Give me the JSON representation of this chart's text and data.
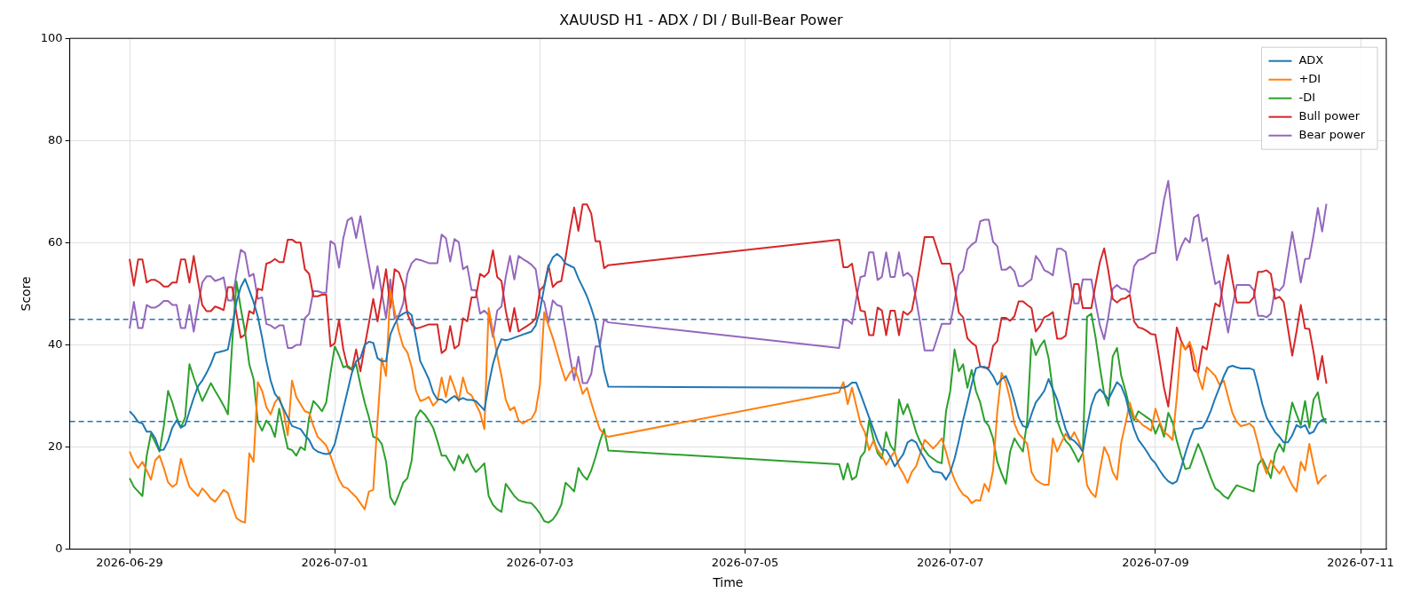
{
  "chart_data": {
    "type": "line",
    "title": "XAUUSD H1 - ADX / DI / Bull-Bear Power",
    "xlabel": "Time",
    "ylabel": "Score",
    "x": [
      "2026-06-29T00:00",
      "2026-06-29T01:00",
      "2026-06-29T02:00",
      "2026-06-29T03:00",
      "2026-06-29T04:00",
      "2026-06-29T05:00",
      "2026-06-29T06:00",
      "2026-06-29T07:00",
      "2026-06-29T08:00",
      "2026-06-29T09:00",
      "2026-06-29T10:00",
      "2026-06-29T11:00",
      "2026-06-29T12:00",
      "2026-06-29T13:00",
      "2026-06-29T14:00",
      "2026-06-29T15:00",
      "2026-06-29T16:00",
      "2026-06-29T17:00",
      "2026-06-29T18:00",
      "2026-06-29T19:00",
      "2026-06-29T20:00",
      "2026-06-29T21:00",
      "2026-06-29T22:00",
      "2026-06-29T23:00",
      "2026-06-30T00:00",
      "2026-06-30T01:00",
      "2026-06-30T02:00",
      "2026-06-30T03:00",
      "2026-06-30T04:00",
      "2026-06-30T05:00",
      "2026-06-30T06:00",
      "2026-06-30T07:00",
      "2026-06-30T08:00",
      "2026-06-30T09:00",
      "2026-06-30T10:00",
      "2026-06-30T11:00",
      "2026-06-30T12:00",
      "2026-06-30T13:00",
      "2026-06-30T14:00",
      "2026-06-30T15:00",
      "2026-06-30T16:00",
      "2026-06-30T17:00",
      "2026-06-30T18:00",
      "2026-06-30T19:00",
      "2026-06-30T20:00",
      "2026-06-30T21:00",
      "2026-06-30T22:00",
      "2026-06-30T23:00",
      "2026-07-01T00:00",
      "2026-07-01T01:00",
      "2026-07-01T02:00",
      "2026-07-01T03:00",
      "2026-07-01T04:00",
      "2026-07-01T05:00",
      "2026-07-01T06:00",
      "2026-07-01T07:00",
      "2026-07-01T08:00",
      "2026-07-01T09:00",
      "2026-07-01T10:00",
      "2026-07-01T11:00",
      "2026-07-01T12:00",
      "2026-07-01T13:00",
      "2026-07-01T14:00",
      "2026-07-01T15:00",
      "2026-07-01T16:00",
      "2026-07-01T17:00",
      "2026-07-01T18:00",
      "2026-07-01T19:00",
      "2026-07-01T20:00",
      "2026-07-01T21:00",
      "2026-07-01T22:00",
      "2026-07-01T23:00",
      "2026-07-02T00:00",
      "2026-07-02T01:00",
      "2026-07-02T02:00",
      "2026-07-02T03:00",
      "2026-07-02T04:00",
      "2026-07-02T05:00",
      "2026-07-02T06:00",
      "2026-07-02T07:00",
      "2026-07-02T08:00",
      "2026-07-02T09:00",
      "2026-07-02T10:00",
      "2026-07-02T11:00",
      "2026-07-02T12:00",
      "2026-07-02T13:00",
      "2026-07-02T14:00",
      "2026-07-02T15:00",
      "2026-07-02T16:00",
      "2026-07-02T17:00",
      "2026-07-02T18:00",
      "2026-07-02T19:00",
      "2026-07-02T20:00",
      "2026-07-02T21:00",
      "2026-07-02T22:00",
      "2026-07-02T23:00",
      "2026-07-03T00:00",
      "2026-07-03T01:00",
      "2026-07-03T02:00",
      "2026-07-03T03:00",
      "2026-07-03T04:00",
      "2026-07-03T05:00",
      "2026-07-03T06:00",
      "2026-07-03T07:00",
      "2026-07-03T08:00",
      "2026-07-03T09:00",
      "2026-07-03T10:00",
      "2026-07-03T11:00",
      "2026-07-03T12:00",
      "2026-07-03T13:00",
      "2026-07-03T14:00",
      "2026-07-03T15:00",
      "2026-07-03T16:00",
      "2026-07-05T22:00",
      "2026-07-05T23:00",
      "2026-07-06T00:00",
      "2026-07-06T01:00",
      "2026-07-06T02:00",
      "2026-07-06T03:00",
      "2026-07-06T04:00",
      "2026-07-06T05:00",
      "2026-07-06T06:00",
      "2026-07-06T07:00",
      "2026-07-06T08:00",
      "2026-07-06T09:00",
      "2026-07-06T10:00",
      "2026-07-06T11:00",
      "2026-07-06T12:00",
      "2026-07-06T13:00",
      "2026-07-06T14:00",
      "2026-07-06T15:00",
      "2026-07-06T16:00",
      "2026-07-06T17:00",
      "2026-07-06T18:00",
      "2026-07-06T19:00",
      "2026-07-06T20:00",
      "2026-07-06T21:00",
      "2026-07-06T22:00",
      "2026-07-06T23:00",
      "2026-07-07T00:00",
      "2026-07-07T01:00",
      "2026-07-07T02:00",
      "2026-07-07T03:00",
      "2026-07-07T04:00",
      "2026-07-07T05:00",
      "2026-07-07T06:00",
      "2026-07-07T07:00",
      "2026-07-07T08:00",
      "2026-07-07T09:00",
      "2026-07-07T10:00",
      "2026-07-07T11:00",
      "2026-07-07T12:00",
      "2026-07-07T13:00",
      "2026-07-07T14:00",
      "2026-07-07T15:00",
      "2026-07-07T16:00",
      "2026-07-07T17:00",
      "2026-07-07T18:00",
      "2026-07-07T19:00",
      "2026-07-07T20:00",
      "2026-07-07T21:00",
      "2026-07-07T22:00",
      "2026-07-07T23:00",
      "2026-07-08T00:00",
      "2026-07-08T01:00",
      "2026-07-08T02:00",
      "2026-07-08T03:00",
      "2026-07-08T04:00",
      "2026-07-08T05:00",
      "2026-07-08T06:00",
      "2026-07-08T07:00",
      "2026-07-08T08:00",
      "2026-07-08T09:00",
      "2026-07-08T10:00",
      "2026-07-08T11:00",
      "2026-07-08T12:00",
      "2026-07-08T13:00",
      "2026-07-08T14:00",
      "2026-07-08T15:00",
      "2026-07-08T16:00",
      "2026-07-08T17:00",
      "2026-07-08T18:00",
      "2026-07-08T19:00",
      "2026-07-08T20:00",
      "2026-07-08T21:00",
      "2026-07-08T22:00",
      "2026-07-08T23:00",
      "2026-07-09T00:00",
      "2026-07-09T01:00",
      "2026-07-09T02:00",
      "2026-07-09T03:00",
      "2026-07-09T04:00",
      "2026-07-09T05:00",
      "2026-07-09T06:00",
      "2026-07-09T07:00",
      "2026-07-09T08:00",
      "2026-07-09T09:00",
      "2026-07-09T10:00",
      "2026-07-09T11:00",
      "2026-07-09T12:00",
      "2026-07-09T13:00",
      "2026-07-09T14:00",
      "2026-07-09T15:00",
      "2026-07-09T16:00",
      "2026-07-09T17:00",
      "2026-07-09T18:00",
      "2026-07-09T19:00",
      "2026-07-09T20:00",
      "2026-07-09T21:00",
      "2026-07-09T22:00",
      "2026-07-09T23:00",
      "2026-07-10T00:00",
      "2026-07-10T01:00",
      "2026-07-10T02:00",
      "2026-07-10T03:00",
      "2026-07-10T04:00",
      "2026-07-10T05:00",
      "2026-07-10T06:00",
      "2026-07-10T07:00",
      "2026-07-10T08:00",
      "2026-07-10T09:00",
      "2026-07-10T10:00",
      "2026-07-10T11:00",
      "2026-07-10T12:00",
      "2026-07-10T13:00",
      "2026-07-10T14:00",
      "2026-07-10T15:00",
      "2026-07-10T16:00"
    ],
    "series": [
      {
        "name": "ADX",
        "color": "#1f77b4",
        "values": [
          27.0,
          26.1,
          24.9,
          24.6,
          23,
          23,
          21.7,
          19.4,
          19.5,
          21.2,
          23.8,
          25.2,
          23.8,
          24.3,
          27,
          29.6,
          31.9,
          33,
          34.5,
          36.2,
          38.4,
          38.6,
          38.8,
          39.1,
          43.5,
          48.4,
          51.3,
          52.9,
          50.7,
          48.4,
          45.5,
          41.4,
          36.8,
          33,
          30.4,
          29.3,
          27.5,
          25.8,
          24.1,
          23.8,
          23.5,
          22.3,
          21.4,
          19.7,
          19.1,
          18.8,
          18.6,
          18.8,
          20.6,
          24.1,
          27.5,
          31,
          34.5,
          36.8,
          37.4,
          40,
          40.6,
          40.4,
          37.4,
          36.8,
          36.8,
          42,
          44,
          45.5,
          46.1,
          46.5,
          45.8,
          41.4,
          36.8,
          35.1,
          33.3,
          30.7,
          29.3,
          29.3,
          28.7,
          29.4,
          30,
          29.2,
          29.6,
          29.2,
          29.2,
          29,
          28.1,
          27.2,
          32.2,
          36.2,
          39.1,
          41.1,
          40.9,
          41.1,
          41.4,
          41.7,
          42,
          42.3,
          42.6,
          43.8,
          46.7,
          51.3,
          55.3,
          57.1,
          57.8,
          57.1,
          55.9,
          55.5,
          55.1,
          53,
          51.3,
          49.5,
          47.2,
          44.5,
          40,
          35,
          31.8,
          31.6,
          31.6,
          31.9,
          32.6,
          32.6,
          30.4,
          28.1,
          25.8,
          23.5,
          21.2,
          19.5,
          19.4,
          18,
          16.2,
          17.4,
          18.6,
          20.9,
          21.4,
          20.9,
          19.1,
          17.7,
          16.2,
          15.2,
          15.1,
          14.9,
          13.6,
          15.1,
          17.7,
          21.2,
          25.2,
          28.7,
          32.2,
          35.4,
          35.7,
          35.7,
          35.1,
          33.9,
          32.2,
          33.3,
          33.9,
          31.9,
          29,
          25.8,
          24.1,
          23.8,
          26.4,
          28.7,
          29.8,
          31,
          33.3,
          31.3,
          29.3,
          26.4,
          23.5,
          21.7,
          21.2,
          20.3,
          19.1,
          24.1,
          28.1,
          30.4,
          31.3,
          30.4,
          29.3,
          31,
          32.7,
          31.9,
          29.8,
          26.4,
          23.5,
          21.4,
          20.3,
          19.1,
          17.7,
          16.8,
          15.4,
          14.2,
          13.3,
          12.8,
          13.3,
          15.9,
          18.8,
          21.4,
          23.5,
          23.6,
          23.8,
          25.2,
          27.2,
          29.6,
          31.7,
          33.9,
          35.6,
          35.9,
          35.6,
          35.4,
          35.4,
          35.4,
          35.1,
          31.9,
          28.4,
          25.8,
          24.3,
          22.9,
          22,
          20.9,
          20.9,
          22.3,
          24.3,
          23.8,
          24.3,
          22.6,
          23,
          24.6,
          25.3,
          25.5
        ]
      },
      {
        "name": "+DI",
        "color": "#ff7f0e",
        "values": [
          19.1,
          17.1,
          15.9,
          17.1,
          15.4,
          13.6,
          17.4,
          18.3,
          15.9,
          13.1,
          12.2,
          12.8,
          17.7,
          14.8,
          12.2,
          11.3,
          10.4,
          11.9,
          11,
          9.9,
          9.3,
          10.4,
          11.6,
          11,
          8.4,
          6.1,
          5.5,
          5.2,
          18.8,
          17.1,
          32.7,
          31,
          27.8,
          26.4,
          28.7,
          29.8,
          27,
          22.3,
          33,
          29.8,
          28.4,
          27,
          26.7,
          24.1,
          22,
          21.2,
          20.3,
          18.3,
          15.9,
          13.6,
          12.2,
          11.9,
          11,
          10.2,
          9,
          7.8,
          11.3,
          11.6,
          25.2,
          37.4,
          33.9,
          50.7,
          46.6,
          42.6,
          39.7,
          38.5,
          35.6,
          31,
          29,
          29.3,
          29.8,
          28.1,
          29,
          33.6,
          29.8,
          33.9,
          31.6,
          29,
          33.6,
          30.7,
          30.1,
          28.4,
          26.7,
          23.5,
          47.2,
          42.6,
          38,
          33.9,
          29.3,
          27.2,
          27.8,
          25.2,
          24.6,
          25.2,
          25.5,
          27,
          32.2,
          46.4,
          43.8,
          41.4,
          38.5,
          35.6,
          33,
          34.5,
          35.6,
          33.3,
          30.4,
          31.6,
          28.7,
          26,
          23.5,
          22.5,
          22,
          30.7,
          32.7,
          28.4,
          31.6,
          28.1,
          24.6,
          22.9,
          19.4,
          21.2,
          19.4,
          18.3,
          16.5,
          18,
          19.1,
          16.2,
          14.8,
          13,
          15.1,
          16.2,
          18.8,
          21.4,
          20.6,
          19.7,
          20.6,
          21.7,
          19.1,
          15.9,
          13.6,
          11.9,
          10.7,
          10.2,
          9,
          9.6,
          9.5,
          12.8,
          11.3,
          15.4,
          27,
          34.5,
          32.7,
          29.3,
          24.6,
          22.6,
          21.7,
          20.6,
          15.1,
          13.6,
          13,
          12.6,
          12.6,
          21.7,
          19.1,
          20.9,
          22.6,
          21.4,
          22.9,
          21.2,
          19.1,
          12.5,
          11,
          10.2,
          15.4,
          20,
          18.3,
          15.1,
          13.6,
          20.9,
          24.6,
          28.7,
          25.8,
          25.2,
          24.3,
          23.8,
          23.2,
          27.5,
          24.9,
          22.9,
          22.3,
          21.4,
          29.8,
          40.3,
          39.1,
          40.6,
          38,
          33.9,
          31.3,
          35.6,
          34.8,
          33.9,
          32.2,
          33,
          29.8,
          26.7,
          24.9,
          24.1,
          24.3,
          24.6,
          23.8,
          20.6,
          17.1,
          14.8,
          17.4,
          15.9,
          14.8,
          16.2,
          14.2,
          12.5,
          11.3,
          17.1,
          15.4,
          20.6,
          16.5,
          12.8,
          13.9,
          14.5
        ]
      },
      {
        "name": "-DI",
        "color": "#2ca02c",
        "values": [
          13.9,
          12.2,
          11.3,
          10.4,
          18.3,
          22.6,
          20.9,
          19.1,
          24.1,
          31,
          28.7,
          25.8,
          23.8,
          25.8,
          36.2,
          33.6,
          31.3,
          29,
          30.7,
          32.5,
          31,
          29.6,
          28.1,
          26.4,
          40.3,
          52.4,
          47.2,
          42.6,
          36.2,
          33.3,
          24.9,
          23.2,
          25.2,
          24.1,
          22,
          27.5,
          23.5,
          19.7,
          19.4,
          18.3,
          20,
          19.4,
          25.8,
          29,
          28.1,
          27,
          28.7,
          34.5,
          39.7,
          37.9,
          35.6,
          35.9,
          35.3,
          36.2,
          32.2,
          28.7,
          25.8,
          22,
          21.7,
          20.6,
          17.1,
          10.2,
          8.7,
          10.7,
          13,
          13.9,
          17.4,
          25.8,
          27.2,
          26.4,
          25.2,
          23.8,
          21.2,
          18.3,
          18.3,
          16.8,
          15.4,
          18.3,
          16.8,
          18.6,
          16.5,
          15.1,
          15.9,
          16.8,
          10.4,
          8.7,
          7.8,
          7.3,
          12.8,
          11.6,
          10.4,
          9.6,
          9.3,
          9.1,
          9,
          8.1,
          7,
          5.5,
          5.2,
          5.8,
          7,
          8.7,
          13,
          12.2,
          11.3,
          15.9,
          14.5,
          13.6,
          15.4,
          18,
          21,
          23.5,
          19.3,
          16.6,
          13.6,
          16.8,
          13.6,
          14.2,
          18,
          19.1,
          25.2,
          21.7,
          18.8,
          17.7,
          22.9,
          20.3,
          19.1,
          29.3,
          26.4,
          28.4,
          25.8,
          22.9,
          20.9,
          19.4,
          18.3,
          17.7,
          17.1,
          16.8,
          27,
          31,
          39.1,
          34.8,
          36.2,
          31.6,
          35.1,
          31,
          28.7,
          25.2,
          24.1,
          21.7,
          17.1,
          14.8,
          12.8,
          19.1,
          21.7,
          20.3,
          19.1,
          25.2,
          41.1,
          38,
          39.7,
          40.9,
          37.4,
          31,
          25.2,
          22.9,
          21.2,
          20.3,
          18.8,
          17.1,
          18.8,
          45.5,
          46.1,
          41.4,
          35.6,
          30.4,
          28.1,
          37.7,
          39.4,
          33.9,
          31,
          27.5,
          25.2,
          27,
          26.4,
          25.8,
          25.2,
          22.6,
          24.6,
          22,
          26.7,
          24.9,
          21.2,
          18.3,
          15.7,
          15.9,
          18.3,
          20.6,
          18.6,
          16.2,
          13.9,
          11.9,
          11.3,
          10.4,
          9.9,
          11.3,
          12.5,
          12.2,
          11.9,
          11.6,
          11.3,
          16.5,
          17.7,
          15.9,
          13.9,
          18.8,
          20.6,
          19.1,
          24.1,
          28.7,
          26.4,
          24.3,
          29,
          23.8,
          29.3,
          30.7,
          26.1,
          24.6
        ]
      },
      {
        "name": "Bull power",
        "color": "#d62728",
        "values": [
          56.8,
          51.6,
          56.7,
          56.7,
          52.2,
          52.7,
          52.7,
          52.2,
          51.4,
          51.4,
          52.2,
          52.2,
          56.7,
          56.7,
          52.2,
          57.4,
          52.4,
          47.8,
          46.6,
          46.6,
          47.5,
          47.2,
          46.8,
          51.3,
          51.3,
          46.1,
          41.4,
          42,
          46.6,
          46.1,
          51,
          50.7,
          55.9,
          56.2,
          56.8,
          56.2,
          56.2,
          60.6,
          60.6,
          60,
          60,
          54.8,
          53.9,
          49.5,
          49.5,
          49.8,
          49.8,
          39.7,
          40.3,
          44.9,
          39.1,
          35.6,
          35.1,
          39.1,
          34.8,
          39.7,
          44.3,
          49,
          44.6,
          49.8,
          54.8,
          47.2,
          54.8,
          54.2,
          51.9,
          46.1,
          44,
          43.2,
          43.4,
          43.7,
          44,
          44,
          44,
          38.4,
          39.1,
          43.7,
          39.3,
          39.9,
          45.2,
          44.6,
          49.3,
          49.3,
          53.9,
          53.3,
          54.2,
          58.5,
          53.3,
          52.5,
          46.7,
          42.6,
          47.2,
          42.6,
          43.2,
          43.7,
          44.3,
          45.2,
          50.7,
          51.6,
          55.6,
          51.3,
          52.2,
          52.5,
          57.1,
          62.3,
          66.9,
          62.3,
          67.5,
          67.5,
          65.7,
          60.3,
          60.3,
          55,
          55.6,
          60.6,
          55.2,
          55.2,
          55.9,
          51,
          46.7,
          46.5,
          41.9,
          41.9,
          47.3,
          46.7,
          41.9,
          46.7,
          46.7,
          41.9,
          46.5,
          45.9,
          46.7,
          51,
          55.9,
          61.1,
          61.1,
          61.1,
          58.5,
          55.9,
          55.9,
          55.9,
          51.5,
          46.3,
          45.4,
          41.3,
          40.4,
          39.8,
          35.8,
          35.5,
          35.5,
          39.8,
          40.7,
          45.3,
          45.3,
          44.7,
          45.6,
          48.5,
          48.5,
          47.8,
          47.2,
          42.6,
          43.7,
          45.4,
          45.8,
          46.4,
          41.2,
          41.2,
          41.8,
          47,
          51.9,
          51.9,
          47.2,
          47.2,
          47.2,
          51.9,
          56.2,
          58.9,
          54.4,
          49,
          48.3,
          49,
          49.1,
          49.8,
          44.6,
          43.4,
          43.2,
          42.7,
          42.1,
          42,
          36.8,
          31.6,
          27.9,
          35.6,
          43.4,
          40.8,
          39.1,
          40,
          35.1,
          34.5,
          39.7,
          39.1,
          43.7,
          48.1,
          47.5,
          53,
          57.6,
          52.7,
          48.3,
          48.3,
          48.3,
          48.3,
          49.3,
          54.3,
          54.3,
          54.6,
          53.9,
          49,
          49.4,
          48.4,
          43.2,
          37.9,
          42.6,
          47.8,
          43.2,
          43.1,
          38.5,
          33.2,
          37.8,
          32.4
        ]
      },
      {
        "name": "Bear power",
        "color": "#9467bd",
        "values": [
          43.2,
          48.4,
          43.3,
          43.3,
          47.8,
          47.3,
          47.3,
          47.8,
          48.6,
          48.6,
          47.8,
          47.8,
          43.3,
          43.3,
          47.8,
          42.6,
          47.6,
          52.2,
          53.4,
          53.4,
          52.5,
          52.8,
          53.2,
          48.7,
          48.7,
          53.9,
          58.6,
          58,
          53.4,
          53.9,
          49,
          49.3,
          44.1,
          43.8,
          43.2,
          43.8,
          43.8,
          39.4,
          39.4,
          40,
          40,
          45.2,
          46.1,
          50.5,
          50.5,
          50.2,
          50.2,
          60.3,
          59.7,
          55.1,
          60.9,
          64.4,
          64.9,
          60.9,
          65.2,
          60.3,
          55.7,
          51,
          55.4,
          50.2,
          45.2,
          52.8,
          45.2,
          45.8,
          48.1,
          53.9,
          56,
          56.8,
          56.6,
          56.3,
          56,
          56,
          56,
          61.6,
          60.9,
          56.3,
          60.7,
          60.1,
          54.8,
          55.4,
          50.7,
          50.7,
          46.1,
          46.7,
          45.8,
          41.5,
          46.7,
          47.5,
          53.3,
          57.4,
          52.8,
          57.4,
          56.8,
          56.3,
          55.7,
          54.8,
          49.3,
          48.4,
          44.4,
          48.7,
          47.8,
          47.5,
          42.9,
          37.7,
          33.1,
          37.7,
          32.5,
          32.5,
          34.3,
          39.7,
          39.7,
          45,
          44.4,
          39.4,
          44.8,
          44.8,
          44.1,
          49,
          53.3,
          53.5,
          58.1,
          58.1,
          52.7,
          53.3,
          58.1,
          53.3,
          53.3,
          58.1,
          53.5,
          54.1,
          53.3,
          49,
          44.1,
          38.9,
          38.9,
          38.9,
          41.5,
          44.1,
          44.1,
          44.1,
          48.5,
          53.7,
          54.6,
          58.7,
          59.6,
          60.2,
          64.2,
          64.5,
          64.5,
          60.2,
          59.3,
          54.7,
          54.7,
          55.3,
          54.4,
          51.5,
          51.5,
          52.2,
          52.8,
          57.4,
          56.3,
          54.6,
          54.2,
          53.6,
          58.8,
          58.8,
          58.2,
          53,
          48.1,
          48.1,
          52.8,
          52.8,
          52.8,
          48.1,
          43.8,
          41.1,
          45.6,
          51,
          51.7,
          51,
          50.9,
          50.2,
          55.4,
          56.6,
          56.8,
          57.3,
          57.9,
          58,
          63.2,
          68.4,
          72.1,
          64.4,
          56.6,
          59.2,
          60.9,
          60,
          64.9,
          65.5,
          60.3,
          60.9,
          56.3,
          51.9,
          52.5,
          47,
          42.4,
          47.3,
          51.7,
          51.7,
          51.7,
          51.7,
          50.7,
          45.7,
          45.7,
          45.4,
          46.1,
          51,
          50.6,
          51.6,
          56.8,
          62.1,
          57.4,
          52.2,
          56.8,
          56.9,
          61.5,
          66.8,
          62.2,
          67.6
        ]
      }
    ],
    "xlim": [
      "2026-06-28T10:00",
      "2026-07-11T06:00"
    ],
    "xticks": [
      "2026-06-29",
      "2026-07-01",
      "2026-07-03",
      "2026-07-05",
      "2026-07-07",
      "2026-07-09",
      "2026-07-11"
    ],
    "ylim": [
      0,
      100
    ],
    "yticks": [
      0,
      20,
      40,
      60,
      80,
      100
    ],
    "ref_lines": [
      {
        "axis": "y",
        "value": 45,
        "color": "#1f77b4",
        "line_style": "dashed"
      },
      {
        "axis": "y",
        "value": 25,
        "color": "#1f77b4",
        "line_style": "dashed"
      }
    ],
    "grid": true,
    "legend": "top right",
    "marker": "none",
    "line_style": "solid"
  }
}
